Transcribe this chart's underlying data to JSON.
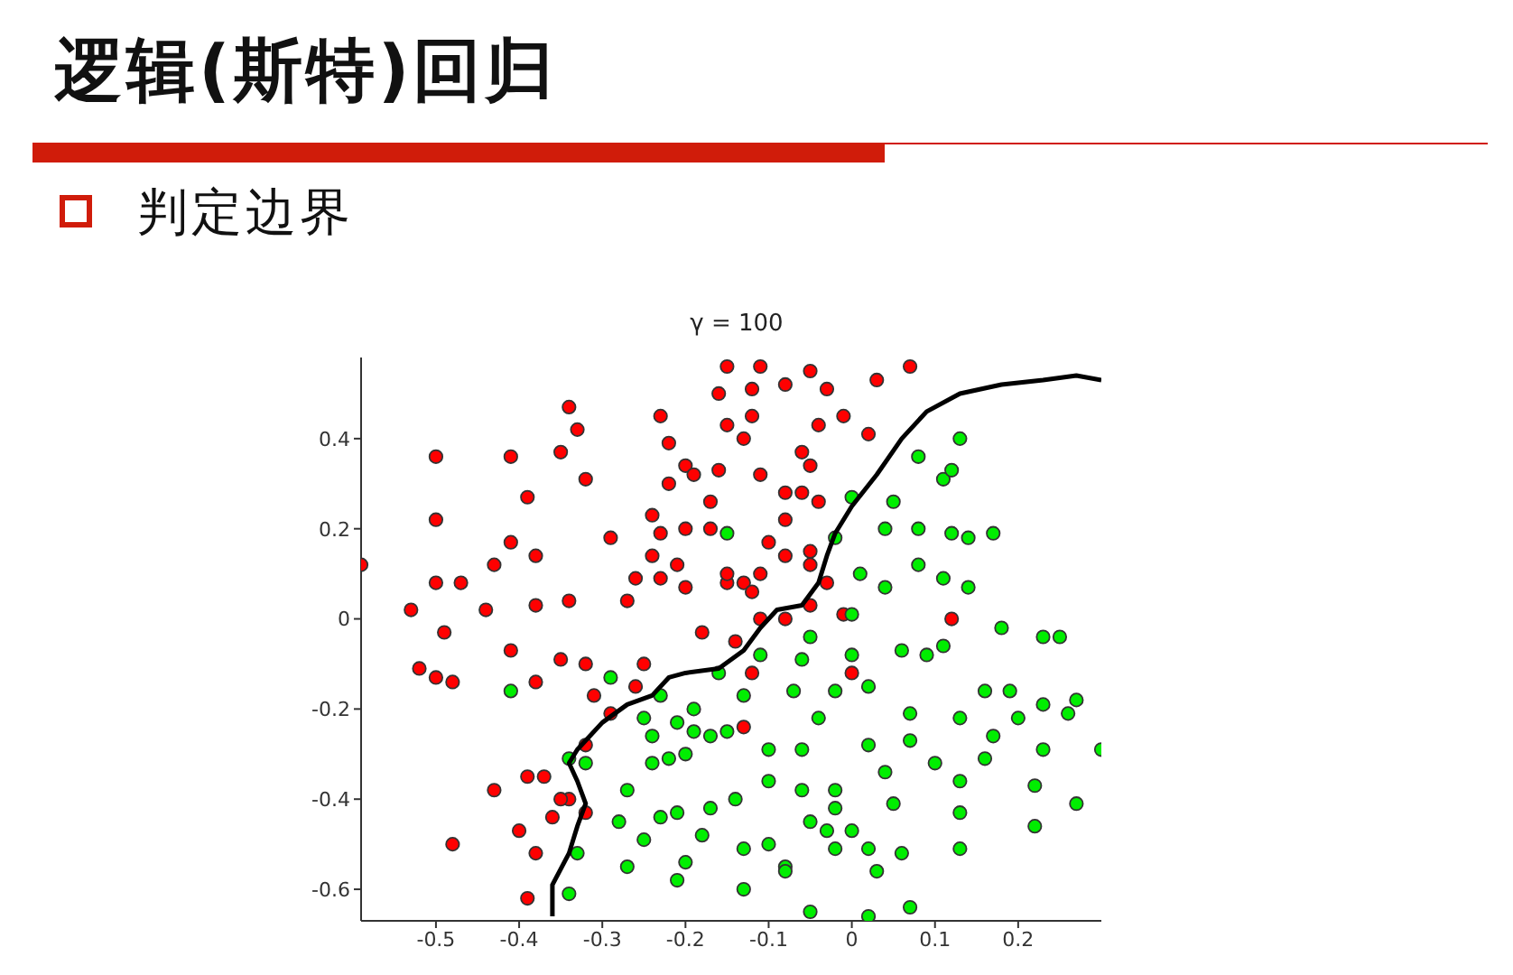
{
  "chart_data": {
    "type": "scatter",
    "title": "逻辑(斯特)回归",
    "subtitle": "判定边界",
    "annotations": [
      "γ = 100"
    ],
    "marker": "circle",
    "grid": false,
    "legend": false,
    "xlim": [
      -0.59,
      0.3
    ],
    "ylim": [
      -0.67,
      0.58
    ],
    "xticks": [
      -0.5,
      -0.4,
      -0.3,
      -0.2,
      -0.1,
      0,
      0.1,
      0.2
    ],
    "yticks": [
      -0.6,
      -0.4,
      -0.2,
      0,
      0.2,
      0.4
    ],
    "series": [
      {
        "color": "#ff0000",
        "x": [
          -0.59,
          -0.5,
          -0.5,
          -0.5,
          -0.53,
          -0.47,
          -0.49,
          -0.41,
          -0.39,
          -0.41,
          -0.43,
          -0.38,
          -0.34,
          -0.33,
          -0.35,
          -0.32,
          -0.29,
          -0.34,
          -0.38,
          -0.44,
          -0.52,
          -0.5,
          -0.48,
          -0.41,
          -0.35,
          -0.38,
          -0.31,
          -0.29,
          -0.32,
          -0.37,
          -0.39,
          -0.43,
          -0.34,
          -0.36,
          -0.4,
          -0.48,
          -0.38,
          -0.39,
          -0.32,
          -0.26,
          -0.25,
          -0.27,
          -0.26,
          -0.24,
          -0.23,
          -0.2,
          -0.24,
          -0.22,
          -0.2,
          -0.19,
          -0.23,
          -0.22,
          -0.15,
          -0.16,
          -0.15,
          -0.12,
          -0.11,
          -0.12,
          -0.13,
          -0.16,
          -0.17,
          -0.17,
          -0.21,
          -0.23,
          -0.2,
          -0.18,
          -0.15,
          -0.15,
          -0.13,
          -0.12,
          -0.11,
          -0.1,
          -0.08,
          -0.08,
          -0.06,
          -0.05,
          -0.04,
          -0.05,
          -0.08,
          -0.03,
          -0.01,
          0.03,
          0.07,
          0.02,
          -0.06,
          -0.11,
          -0.04,
          -0.03,
          -0.05,
          -0.05,
          -0.08,
          -0.11,
          -0.01,
          -0.14,
          -0.12,
          0,
          -0.13,
          -0.08,
          -0.05,
          0.12,
          -0.32,
          -0.35
        ],
        "values": [
          0.12,
          0.36,
          0.22,
          0.08,
          0.02,
          0.08,
          -0.03,
          0.36,
          0.27,
          0.17,
          0.12,
          0.14,
          0.47,
          0.42,
          0.37,
          0.31,
          0.18,
          0.04,
          0.03,
          0.02,
          -0.11,
          -0.13,
          -0.14,
          -0.07,
          -0.09,
          -0.14,
          -0.17,
          -0.21,
          -0.28,
          -0.35,
          -0.35,
          -0.38,
          -0.4,
          -0.44,
          -0.47,
          -0.5,
          -0.52,
          -0.62,
          -0.1,
          -0.15,
          -0.1,
          0.04,
          0.09,
          0.14,
          0.19,
          0.2,
          0.23,
          0.3,
          0.34,
          0.32,
          0.45,
          0.39,
          0.56,
          0.5,
          0.43,
          0.45,
          0.56,
          0.51,
          0.4,
          0.33,
          0.26,
          0.2,
          0.12,
          0.09,
          0.07,
          -0.03,
          0.08,
          0.1,
          0.08,
          0.06,
          0.1,
          0.17,
          0.22,
          0.28,
          0.28,
          0.34,
          0.43,
          0.55,
          0.52,
          0.51,
          0.45,
          0.53,
          0.56,
          0.41,
          0.37,
          0.32,
          0.26,
          0.08,
          0.12,
          0.03,
          0,
          0,
          0.01,
          -0.05,
          -0.12,
          -0.12,
          -0.24,
          0.14,
          0.15,
          0,
          -0.43,
          -0.4
        ]
      },
      {
        "color": "#00ee00",
        "x": [
          -0.15,
          -0.02,
          0,
          0.05,
          0.08,
          0.13,
          0.11,
          0.12,
          0.04,
          0.08,
          0.12,
          0.14,
          0.17,
          0.08,
          0.11,
          0.14,
          0.04,
          0.01,
          0,
          -0.05,
          0,
          -0.02,
          -0.06,
          -0.11,
          -0.07,
          0.02,
          0.06,
          0.09,
          0.11,
          0.07,
          0.13,
          0.16,
          0.19,
          0.17,
          0.2,
          0.23,
          0.27,
          0.26,
          0.23,
          0.25,
          0.18,
          0.23,
          0.3,
          0.22,
          0.27,
          0.22,
          0.16,
          0.1,
          0.13,
          0.13,
          0.13,
          0.05,
          0.04,
          0.07,
          0.02,
          -0.04,
          -0.06,
          -0.1,
          -0.1,
          -0.06,
          -0.02,
          -0.02,
          0,
          -0.02,
          0.02,
          -0.03,
          -0.05,
          -0.1,
          -0.08,
          -0.08,
          -0.13,
          -0.13,
          -0.05,
          0.02,
          0.07,
          0.03,
          0.06,
          -0.15,
          -0.19,
          -0.16,
          -0.13,
          -0.14,
          -0.17,
          -0.21,
          -0.23,
          -0.18,
          -0.2,
          -0.21,
          -0.25,
          -0.27,
          -0.28,
          -0.34,
          -0.33,
          -0.32,
          -0.34,
          -0.24,
          -0.22,
          -0.2,
          -0.17,
          -0.19,
          -0.21,
          -0.24,
          -0.25,
          -0.29,
          -0.41,
          -0.23,
          -0.27
        ],
        "values": [
          0.19,
          0.18,
          0.27,
          0.26,
          0.36,
          0.4,
          0.31,
          0.33,
          0.2,
          0.2,
          0.19,
          0.18,
          0.19,
          0.12,
          0.09,
          0.07,
          0.07,
          0.1,
          0.01,
          -0.04,
          -0.08,
          -0.16,
          -0.09,
          -0.08,
          -0.16,
          -0.15,
          -0.07,
          -0.08,
          -0.06,
          -0.21,
          -0.22,
          -0.16,
          -0.16,
          -0.26,
          -0.22,
          -0.19,
          -0.18,
          -0.21,
          -0.04,
          -0.04,
          -0.02,
          -0.29,
          -0.29,
          -0.37,
          -0.41,
          -0.46,
          -0.31,
          -0.32,
          -0.36,
          -0.43,
          -0.51,
          -0.41,
          -0.34,
          -0.27,
          -0.28,
          -0.22,
          -0.29,
          -0.29,
          -0.36,
          -0.38,
          -0.38,
          -0.42,
          -0.47,
          -0.51,
          -0.51,
          -0.47,
          -0.45,
          -0.5,
          -0.55,
          -0.56,
          -0.51,
          -0.6,
          -0.65,
          -0.66,
          -0.64,
          -0.56,
          -0.52,
          -0.25,
          -0.2,
          -0.12,
          -0.17,
          -0.4,
          -0.42,
          -0.43,
          -0.44,
          -0.48,
          -0.54,
          -0.58,
          -0.49,
          -0.55,
          -0.45,
          -0.61,
          -0.52,
          -0.32,
          -0.31,
          -0.32,
          -0.31,
          -0.3,
          -0.26,
          -0.25,
          -0.23,
          -0.26,
          -0.22,
          -0.13,
          -0.16,
          -0.17,
          -0.38
        ]
      },
      {
        "type": "line",
        "color": "#000000",
        "marker": "none",
        "x": [
          -0.36,
          -0.36,
          -0.34,
          -0.33,
          -0.32,
          -0.33,
          -0.34,
          -0.33,
          -0.3,
          -0.27,
          -0.24,
          -0.22,
          -0.2,
          -0.16,
          -0.13,
          -0.11,
          -0.09,
          -0.06,
          -0.04,
          -0.03,
          -0.02,
          0,
          0.03,
          0.06,
          0.09,
          0.13,
          0.18,
          0.23,
          0.27,
          0.3
        ],
        "values": [
          -0.66,
          -0.59,
          -0.52,
          -0.46,
          -0.41,
          -0.36,
          -0.32,
          -0.29,
          -0.23,
          -0.19,
          -0.17,
          -0.13,
          -0.12,
          -0.11,
          -0.07,
          -0.02,
          0.02,
          0.03,
          0.08,
          0.14,
          0.19,
          0.25,
          0.32,
          0.4,
          0.46,
          0.5,
          0.52,
          0.53,
          0.54,
          0.53
        ]
      }
    ]
  }
}
